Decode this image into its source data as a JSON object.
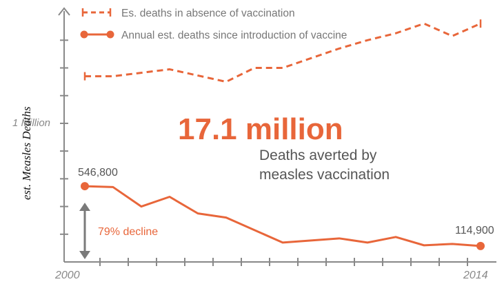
{
  "chart_data": {
    "type": "line",
    "ylabel": "est. Measles Deaths",
    "x_tick_labels": [
      "2000",
      "2014"
    ],
    "y_tick_label": "1 Million",
    "x": [
      2000,
      2001,
      2002,
      2003,
      2004,
      2005,
      2006,
      2007,
      2008,
      2009,
      2010,
      2011,
      2012,
      2013,
      2014
    ],
    "series": [
      {
        "name": "Es. deaths in absence of vaccination",
        "style": "dashed",
        "points": [
          [
            2000,
            1340000
          ],
          [
            2001,
            1340000
          ],
          [
            2003,
            1390000
          ],
          [
            2005,
            1300000
          ],
          [
            2006,
            1400000
          ],
          [
            2007,
            1400000
          ],
          [
            2008,
            1470000
          ],
          [
            2009,
            1540000
          ],
          [
            2010,
            1600000
          ],
          [
            2011,
            1650000
          ],
          [
            2012,
            1720000
          ],
          [
            2013,
            1630000
          ],
          [
            2014,
            1720000
          ]
        ]
      },
      {
        "name": "Annual est. deaths since introduction of vaccine",
        "style": "solid",
        "points": [
          [
            2000,
            546800
          ],
          [
            2001,
            540000
          ],
          [
            2002,
            400000
          ],
          [
            2003,
            470000
          ],
          [
            2004,
            350000
          ],
          [
            2005,
            320000
          ],
          [
            2007,
            140000
          ],
          [
            2009,
            170000
          ],
          [
            2010,
            140000
          ],
          [
            2011,
            180000
          ],
          [
            2012,
            120000
          ],
          [
            2013,
            130000
          ],
          [
            2014,
            114900
          ]
        ]
      }
    ],
    "point_labels": [
      {
        "text": "546,800",
        "x": 2000,
        "y": 546800
      },
      {
        "text": "114,900",
        "x": 2014,
        "y": 114900
      }
    ],
    "annotations": {
      "big_number": "17.1 million",
      "caption_line1": "Deaths averted by",
      "caption_line2": "measles vaccination",
      "decline": "79% decline"
    },
    "ylim": [
      0,
      1900000
    ],
    "xlim": [
      2000,
      2014
    ]
  },
  "colors": {
    "accent": "#e8663a",
    "axis": "#888888",
    "gray_arrow": "#7a7a7a"
  }
}
